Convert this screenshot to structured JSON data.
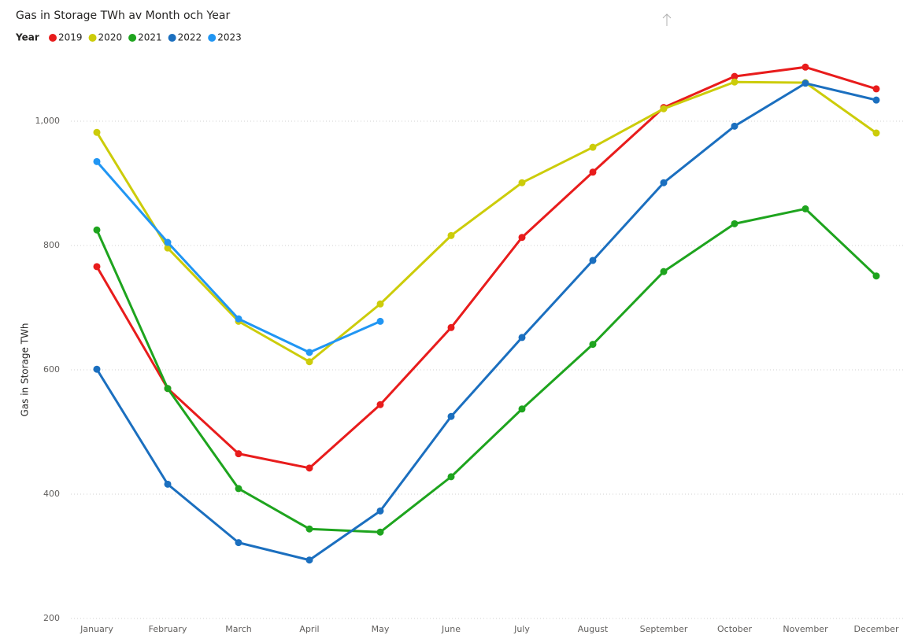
{
  "chart_data": {
    "type": "line",
    "title": "Gas in Storage TWh av Month och Year",
    "legend_title": "Year",
    "y_label": "Gas in Storage TWh",
    "categories": [
      "January",
      "February",
      "March",
      "April",
      "May",
      "June",
      "July",
      "August",
      "September",
      "October",
      "November",
      "December"
    ],
    "series": [
      {
        "name": "2019",
        "color": "#e81c1c",
        "values": [
          766,
          570,
          465,
          442,
          544,
          668,
          813,
          918,
          1022,
          1072,
          1087,
          1052
        ]
      },
      {
        "name": "2020",
        "color": "#cccc0a",
        "values": [
          982,
          796,
          678,
          613,
          706,
          816,
          901,
          958,
          1020,
          1063,
          1062,
          981
        ]
      },
      {
        "name": "2021",
        "color": "#1ea41e",
        "values": [
          825,
          570,
          409,
          344,
          339,
          428,
          537,
          641,
          758,
          835,
          859,
          751
        ]
      },
      {
        "name": "2022",
        "color": "#1b6fbf",
        "values": [
          601,
          416,
          322,
          294,
          373,
          525,
          652,
          776,
          901,
          992,
          1061,
          1034
        ]
      },
      {
        "name": "2023",
        "color": "#2196f3",
        "values": [
          935,
          805,
          682,
          628,
          678,
          null,
          null,
          null,
          null,
          null,
          null,
          null
        ]
      }
    ],
    "ylim": [
      200,
      1100
    ],
    "yticks": [
      200,
      400,
      600,
      800,
      {
        "value": 1000,
        "label": "1,000"
      }
    ],
    "grid": true
  }
}
